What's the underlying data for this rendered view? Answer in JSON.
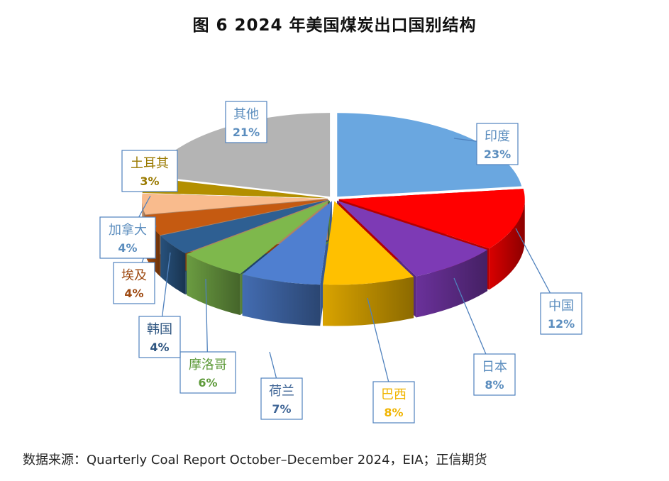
{
  "title": "图 6   2024 年美国煤炭出口国别结构",
  "source": "数据来源：Quarterly Coal Report October–December 2024，EIA；正信期货",
  "chart_data": {
    "type": "pie",
    "style": "3d-exploded",
    "title": "图 6   2024 年美国煤炭出口国别结构",
    "legend": "none (callout labels)",
    "slices": [
      {
        "name": "印度",
        "value": 23,
        "label": "23%",
        "color": "#6AA7E0",
        "text_color": "#5B8DBE"
      },
      {
        "name": "中国",
        "value": 12,
        "label": "12%",
        "color": "#FF0000",
        "text_color": "#5B8DBE"
      },
      {
        "name": "日本",
        "value": 8,
        "label": "8%",
        "color": "#7D3AB5",
        "text_color": "#5B8DBE"
      },
      {
        "name": "巴西",
        "value": 8,
        "label": "8%",
        "color": "#FFC000",
        "text_color": "#F0B400"
      },
      {
        "name": "荷兰",
        "value": 7,
        "label": "7%",
        "color": "#4F7FD0",
        "text_color": "#3F6596"
      },
      {
        "name": "摩洛哥",
        "value": 6,
        "label": "6%",
        "color": "#7EB84C",
        "text_color": "#5E9A3A"
      },
      {
        "name": "韩国",
        "value": 4,
        "label": "4%",
        "color": "#2E5F92",
        "text_color": "#2E5580"
      },
      {
        "name": "埃及",
        "value": 4,
        "label": "4%",
        "color": "#C55A11",
        "text_color": "#9E4A12"
      },
      {
        "name": "加拿大",
        "value": 4,
        "label": "4%",
        "color": "#F9BB8D",
        "text_color": "#5B8DBE"
      },
      {
        "name": "土耳其",
        "value": 3,
        "label": "3%",
        "color": "#B38F00",
        "text_color": "#9A7A00"
      },
      {
        "name": "其他",
        "value": 21,
        "label": "21%",
        "color": "#B4B4B4",
        "text_color": "#5B8DBE"
      }
    ]
  }
}
